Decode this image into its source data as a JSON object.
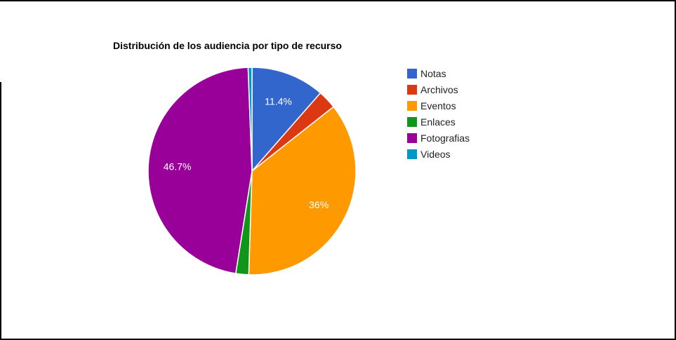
{
  "chart_data": {
    "type": "pie",
    "title": "Distribución de los audiencia por tipo de recurso",
    "categories": [
      "Notas",
      "Archivos",
      "Eventos",
      "Enlaces",
      "Fotografias",
      "Videos"
    ],
    "values": [
      11.4,
      2.9,
      36.0,
      2.0,
      46.7,
      0.6
    ],
    "slice_labels": [
      "11.4%",
      "",
      "36%",
      "",
      "46.7%",
      ""
    ],
    "colors": [
      "#3366cc",
      "#dc3912",
      "#ff9900",
      "#109618",
      "#990099",
      "#0099c6"
    ],
    "legend_position": "right"
  }
}
